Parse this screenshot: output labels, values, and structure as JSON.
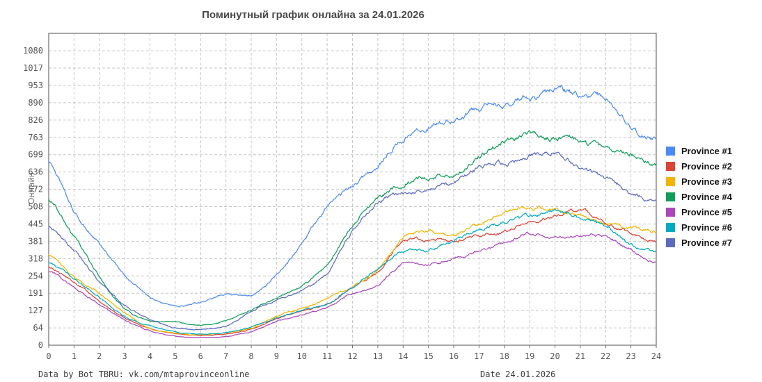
{
  "title": "Поминутный график онлайна за 24.01.2026",
  "footer": {
    "left": "Data by Bot TBRU: vk.com/mtaprovinceonline",
    "right": "Date 24.01.2026"
  },
  "colors": {
    "grid": "#c6c6c6",
    "frame": "#6e6e6e",
    "title_text": "#4a4a4a",
    "tick_text": "#565656"
  },
  "chart_data": {
    "type": "line",
    "title": "Поминутный график онлайна за 24.01.2026",
    "xlabel": "",
    "ylabel": "Онлайн",
    "x_unit": "hour of day (minute-resolution lines)",
    "xlim": [
      0,
      24
    ],
    "ylim": [
      0,
      1145
    ],
    "grid": true,
    "legend_position": "right",
    "x_ticks": [
      "0",
      "1",
      "2",
      "3",
      "4",
      "5",
      "6",
      "7",
      "8",
      "9",
      "10",
      "11",
      "12",
      "13",
      "14",
      "15",
      "16",
      "17",
      "18",
      "19",
      "20",
      "21",
      "22",
      "23",
      "24"
    ],
    "y_ticks": [
      "0",
      "64",
      "127",
      "191",
      "254",
      "318",
      "381",
      "445",
      "508",
      "572",
      "636",
      "699",
      "763",
      "826",
      "890",
      "953",
      "1017",
      "1080"
    ],
    "categories_hours": [
      0,
      1,
      2,
      3,
      4,
      5,
      6,
      7,
      8,
      9,
      10,
      11,
      12,
      13,
      14,
      15,
      16,
      17,
      18,
      19,
      20,
      21,
      22,
      23,
      24
    ],
    "series": [
      {
        "name": "Province #1",
        "color": "#4C8BF5",
        "values": [
          675,
          490,
          370,
          258,
          178,
          146,
          156,
          186,
          185,
          255,
          374,
          505,
          583,
          662,
          761,
          805,
          833,
          867,
          884,
          913,
          932,
          918,
          905,
          807,
          757
        ]
      },
      {
        "name": "Province #2",
        "color": "#DB4437",
        "values": [
          283,
          230,
          163,
          100,
          62,
          44,
          35,
          42,
          60,
          98,
          125,
          150,
          210,
          270,
          379,
          387,
          382,
          400,
          413,
          451,
          468,
          497,
          446,
          410,
          376
        ]
      },
      {
        "name": "Province #3",
        "color": "#F4B400",
        "values": [
          330,
          252,
          190,
          120,
          62,
          44,
          38,
          45,
          63,
          105,
          135,
          172,
          215,
          273,
          395,
          418,
          406,
          446,
          489,
          506,
          497,
          481,
          445,
          430,
          418
        ]
      },
      {
        "name": "Province #4",
        "color": "#0F9D58",
        "values": [
          535,
          398,
          252,
          135,
          92,
          86,
          73,
          90,
          130,
          175,
          215,
          300,
          438,
          535,
          591,
          614,
          625,
          690,
          744,
          770,
          758,
          752,
          722,
          703,
          660
        ]
      },
      {
        "name": "Province #5",
        "color": "#AB47BC",
        "values": [
          268,
          215,
          150,
          92,
          52,
          34,
          27,
          33,
          50,
          88,
          112,
          138,
          188,
          217,
          298,
          298,
          319,
          344,
          370,
          408,
          395,
          404,
          398,
          349,
          303
        ]
      },
      {
        "name": "Province #6",
        "color": "#00ACC1",
        "values": [
          300,
          245,
          176,
          105,
          72,
          48,
          40,
          46,
          66,
          100,
          128,
          152,
          215,
          280,
          344,
          349,
          387,
          421,
          451,
          476,
          489,
          464,
          434,
          370,
          344
        ]
      },
      {
        "name": "Province #7",
        "color": "#5C6BC0",
        "values": [
          430,
          352,
          234,
          145,
          95,
          64,
          58,
          70,
          125,
          165,
          200,
          265,
          420,
          520,
          558,
          575,
          600,
          648,
          666,
          690,
          712,
          648,
          615,
          560,
          523
        ]
      }
    ]
  }
}
